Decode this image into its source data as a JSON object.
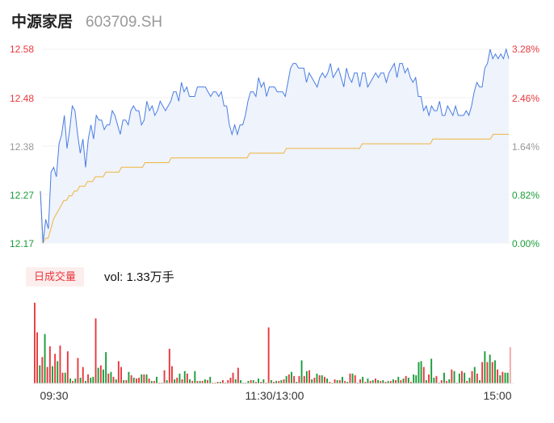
{
  "header": {
    "name": "中源家居",
    "code": "603709.SH"
  },
  "colors": {
    "up": "#e8383d",
    "down": "#1a9d3a",
    "price_line": "#4a7de2",
    "avg_line": "#f0b43c",
    "area_fill": "#eef3fc"
  },
  "volume": {
    "tag": "日成交量",
    "label": "vol: 1.33万手"
  },
  "chart_data": [
    {
      "type": "line",
      "y_ticks_left": [
        "12.58",
        "12.48",
        "12.38",
        "12.27",
        "12.17"
      ],
      "y_ticks_right": [
        "3.28%",
        "2.46%",
        "1.64%",
        "0.82%",
        "0.00%"
      ],
      "ylim": [
        12.17,
        12.58
      ],
      "series": [
        {
          "key": "price",
          "values": [
            12.28,
            12.17,
            12.22,
            12.2,
            12.32,
            12.33,
            12.31,
            12.38,
            12.4,
            12.44,
            12.37,
            12.41,
            12.46,
            12.45,
            12.4,
            12.36,
            12.39,
            12.33,
            12.39,
            12.42,
            12.39,
            12.44,
            12.43,
            12.43,
            12.41,
            12.42,
            12.42,
            12.45,
            12.44,
            12.42,
            12.4,
            12.43,
            12.43,
            12.42,
            12.45,
            12.46,
            12.45,
            12.45,
            12.42,
            12.43,
            12.47,
            12.45,
            12.46,
            12.44,
            12.45,
            12.47,
            12.46,
            12.45,
            12.46,
            12.47,
            12.49,
            12.49,
            12.47,
            12.51,
            12.49,
            12.5,
            12.48,
            12.48,
            12.48,
            12.5,
            12.5,
            12.5,
            12.5,
            12.49,
            12.48,
            12.49,
            12.49,
            12.48,
            12.49,
            12.46,
            12.46,
            12.42,
            12.4,
            12.42,
            12.4,
            12.42,
            12.42,
            12.44,
            12.47,
            12.49,
            12.49,
            12.48,
            12.52,
            12.5,
            12.51,
            12.48,
            12.5,
            12.5,
            12.5,
            12.49,
            12.49,
            12.49,
            12.48,
            12.51,
            12.54,
            12.55,
            12.55,
            12.54,
            12.54,
            12.54,
            12.51,
            12.53,
            12.52,
            12.51,
            12.5,
            12.52,
            12.53,
            12.52,
            12.53,
            12.55,
            12.52,
            12.53,
            12.54,
            12.52,
            12.5,
            12.54,
            12.52,
            12.51,
            12.53,
            12.53,
            12.5,
            12.53,
            12.53,
            12.5,
            12.51,
            12.52,
            12.53,
            12.52,
            12.53,
            12.53,
            12.51,
            12.53,
            12.54,
            12.55,
            12.52,
            12.55,
            12.55,
            12.53,
            12.54,
            12.52,
            12.51,
            12.52,
            12.48,
            12.48,
            12.45,
            12.46,
            12.44,
            12.46,
            12.45,
            12.45,
            12.47,
            12.44,
            12.44,
            12.46,
            12.45,
            12.44,
            12.46,
            12.44,
            12.44,
            12.44,
            12.45,
            12.44,
            12.46,
            12.49,
            12.51,
            12.5,
            12.5,
            12.54,
            12.55,
            12.58,
            12.56,
            12.57,
            12.56,
            12.57,
            12.56,
            12.58,
            12.56
          ]
        },
        {
          "key": "average",
          "values": [
            12.28,
            12.17,
            12.18,
            12.18,
            12.2,
            12.22,
            12.23,
            12.24,
            12.25,
            12.26,
            12.26,
            12.27,
            12.27,
            12.28,
            12.28,
            12.29,
            12.29,
            12.29,
            12.3,
            12.3,
            12.3,
            12.31,
            12.31,
            12.31,
            12.31,
            12.32,
            12.32,
            12.32,
            12.32,
            12.32,
            12.32,
            12.33,
            12.33,
            12.33,
            12.33,
            12.33,
            12.33,
            12.33,
            12.33,
            12.33,
            12.34,
            12.34,
            12.34,
            12.34,
            12.34,
            12.34,
            12.34,
            12.34,
            12.34,
            12.34,
            12.35,
            12.35,
            12.35,
            12.35,
            12.35,
            12.35,
            12.35,
            12.35,
            12.35,
            12.35,
            12.35,
            12.35,
            12.35,
            12.35,
            12.35,
            12.35,
            12.35,
            12.35,
            12.35,
            12.35,
            12.35,
            12.35,
            12.35,
            12.35,
            12.35,
            12.35,
            12.35,
            12.35,
            12.35,
            12.35,
            12.36,
            12.36,
            12.36,
            12.36,
            12.36,
            12.36,
            12.36,
            12.36,
            12.36,
            12.36,
            12.36,
            12.36,
            12.36,
            12.36,
            12.37,
            12.37,
            12.37,
            12.37,
            12.37,
            12.37,
            12.37,
            12.37,
            12.37,
            12.37,
            12.37,
            12.37,
            12.37,
            12.37,
            12.37,
            12.37,
            12.37,
            12.37,
            12.37,
            12.37,
            12.37,
            12.37,
            12.37,
            12.37,
            12.37,
            12.37,
            12.37,
            12.37,
            12.37,
            12.38,
            12.38,
            12.38,
            12.38,
            12.38,
            12.38,
            12.38,
            12.38,
            12.38,
            12.38,
            12.38,
            12.38,
            12.38,
            12.38,
            12.38,
            12.38,
            12.38,
            12.38,
            12.38,
            12.38,
            12.38,
            12.38,
            12.38,
            12.38,
            12.38,
            12.38,
            12.38,
            12.39,
            12.39,
            12.39,
            12.39,
            12.39,
            12.39,
            12.39,
            12.39,
            12.39,
            12.39,
            12.39,
            12.39,
            12.39,
            12.39,
            12.39,
            12.39,
            12.39,
            12.39,
            12.39,
            12.39,
            12.39,
            12.39,
            12.39,
            12.4,
            12.4,
            12.4,
            12.4,
            12.4,
            12.4,
            12.4
          ]
        }
      ]
    },
    {
      "type": "bar",
      "x_ticks": [
        "09:30",
        "11:30/13:00",
        "15:00"
      ],
      "values": [
        98,
        62,
        22,
        32,
        60,
        20,
        45,
        21,
        36,
        27,
        46,
        13,
        13,
        39,
        6,
        3,
        6,
        31,
        7,
        20,
        3,
        11,
        7,
        8,
        79,
        19,
        22,
        17,
        38,
        12,
        14,
        8,
        5,
        27,
        20,
        4,
        4,
        14,
        10,
        7,
        6,
        7,
        11,
        11,
        11,
        6,
        3,
        3,
        8,
        1,
        1,
        16,
        4,
        42,
        21,
        5,
        7,
        12,
        5,
        15,
        12,
        5,
        3,
        15,
        3,
        3,
        3,
        5,
        4,
        8,
        1,
        1,
        2,
        2,
        4,
        1,
        4,
        7,
        13,
        5,
        19,
        4,
        1,
        1,
        3,
        4,
        4,
        2,
        6,
        2,
        5,
        1,
        68,
        4,
        2,
        3,
        3,
        4,
        5,
        9,
        11,
        14,
        9,
        2,
        9,
        28,
        9,
        15,
        16,
        5,
        7,
        12,
        10,
        10,
        8,
        6,
        2,
        1,
        5,
        4,
        4,
        8,
        3,
        2,
        12,
        12,
        10,
        1,
        5,
        8,
        2,
        6,
        3,
        4,
        6,
        4,
        3,
        4,
        2,
        3,
        3,
        5,
        4,
        8,
        4,
        6,
        9,
        7,
        2,
        11,
        10,
        26,
        27,
        20,
        4,
        11,
        30,
        7,
        9,
        1,
        4,
        13,
        3,
        5,
        17,
        15,
        1,
        12,
        15,
        13,
        3,
        7,
        15,
        20,
        12,
        4,
        26,
        39,
        26,
        35,
        26,
        28,
        17,
        10,
        14,
        13,
        13,
        44
      ],
      "colors": [
        "u",
        "u",
        "d",
        "u",
        "d",
        "u",
        "u",
        "d",
        "u",
        "d",
        "u",
        "u",
        "d",
        "u",
        "d",
        "u",
        "d",
        "u",
        "d",
        "u",
        "d",
        "u",
        "d",
        "d",
        "u",
        "d",
        "u",
        "d",
        "d",
        "u",
        "d",
        "u",
        "d",
        "u",
        "u",
        "d",
        "u",
        "d",
        "u",
        "d",
        "u",
        "u",
        "d",
        "u",
        "d",
        "u",
        "d",
        "u",
        "d",
        "u",
        "d",
        "u",
        "d",
        "u",
        "u",
        "d",
        "u",
        "d",
        "u",
        "d",
        "u",
        "d",
        "u",
        "d",
        "u",
        "d",
        "u",
        "d",
        "u",
        "d",
        "u",
        "d",
        "u",
        "d",
        "u",
        "d",
        "u",
        "u",
        "u",
        "d",
        "u",
        "d",
        "d",
        "u",
        "d",
        "u",
        "d",
        "u",
        "d",
        "u",
        "d",
        "u",
        "u",
        "d",
        "u",
        "d",
        "u",
        "d",
        "u",
        "d",
        "u",
        "d",
        "u",
        "d",
        "u",
        "d",
        "u",
        "d",
        "u",
        "d",
        "u",
        "d",
        "u",
        "d",
        "u",
        "d",
        "u",
        "d",
        "u",
        "d",
        "u",
        "d",
        "u",
        "d",
        "u",
        "d",
        "u",
        "d",
        "u",
        "d",
        "u",
        "d",
        "u",
        "d",
        "u",
        "d",
        "u",
        "d",
        "u",
        "d",
        "u",
        "d",
        "u",
        "d",
        "u",
        "d",
        "u",
        "d",
        "u",
        "d",
        "d",
        "d",
        "d",
        "u",
        "d",
        "u",
        "d",
        "d",
        "u",
        "d",
        "u",
        "d",
        "u",
        "d",
        "u",
        "d",
        "u",
        "d",
        "u",
        "d",
        "u",
        "d",
        "u",
        "d",
        "u",
        "d",
        "u",
        "d",
        "u",
        "d",
        "u",
        "d",
        "u",
        "d",
        "u",
        "d",
        "d",
        "d",
        "u",
        "d",
        "u",
        "u"
      ]
    }
  ]
}
